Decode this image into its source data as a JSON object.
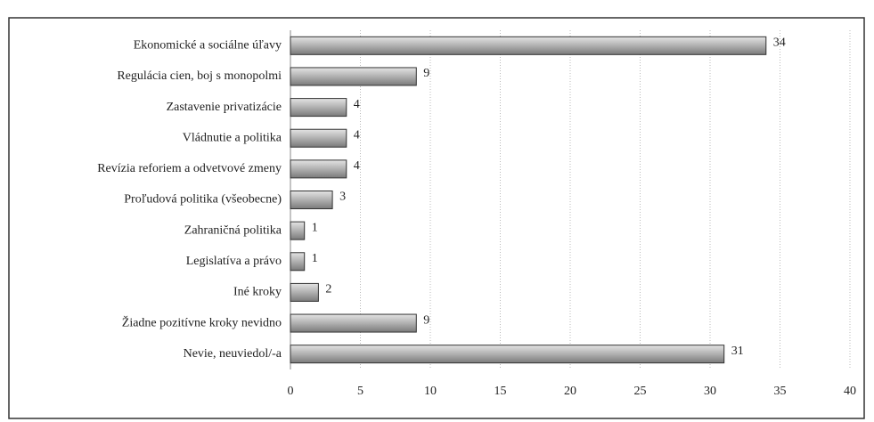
{
  "chart_data": {
    "type": "bar",
    "orientation": "horizontal",
    "categories": [
      "Ekonomické a sociálne úľavy",
      "Regulácia cien, boj s monopolmi",
      "Zastavenie privatizácie",
      "Vládnutie a politika",
      "Revízia reforiem a odvetvové zmeny",
      "Proľudová politika (všeobecne)",
      "Zahraničná politika",
      "Legislatíva a právo",
      "Iné kroky",
      "Žiadne pozitívne kroky nevidno",
      "Nevie, neuviedol/-a"
    ],
    "values": [
      34,
      9,
      4,
      4,
      4,
      3,
      1,
      1,
      2,
      9,
      31
    ],
    "color": "#b8b8b8",
    "xlim": [
      0,
      40
    ],
    "xticks": [
      0,
      5,
      10,
      15,
      20,
      25,
      30,
      35,
      40
    ],
    "grid": true
  }
}
